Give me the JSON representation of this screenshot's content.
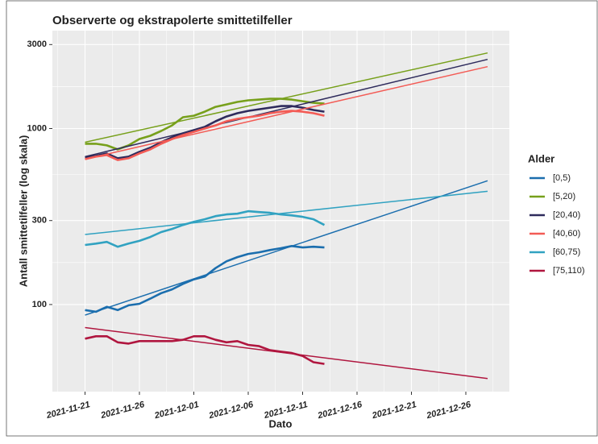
{
  "chart_data": {
    "type": "line",
    "title": "Observerte og ekstrapolerte smittetilfeller",
    "x_label": "Dato",
    "y_label": "Antall smittetilfeller (log skala)",
    "legend_title": "Alder",
    "y_log": true,
    "grid": true,
    "legend_position": "right",
    "xlim": [
      "2021-11-18",
      "2021-12-30"
    ],
    "xticks": [
      "2021-11-21",
      "2021-11-26",
      "2021-12-01",
      "2021-12-06",
      "2021-12-11",
      "2021-12-16",
      "2021-12-21",
      "2021-12-26"
    ],
    "ylim": [
      32,
      3600
    ],
    "yticks": [
      100,
      300,
      1000,
      3000
    ],
    "x": [
      "2021-11-21",
      "2021-11-22",
      "2021-11-23",
      "2021-11-24",
      "2021-11-25",
      "2021-11-26",
      "2021-11-27",
      "2021-11-28",
      "2021-11-29",
      "2021-11-30",
      "2021-12-01",
      "2021-12-02",
      "2021-12-03",
      "2021-12-04",
      "2021-12-05",
      "2021-12-06",
      "2021-12-07",
      "2021-12-08",
      "2021-12-09",
      "2021-12-10",
      "2021-12-11",
      "2021-12-12",
      "2021-12-13"
    ],
    "trend_x": [
      "2021-11-21",
      "2021-12-28"
    ],
    "series": [
      {
        "name": "[0,5)",
        "color": "#1b6eae",
        "values": [
          93,
          91,
          97,
          93,
          99,
          101,
          108,
          116,
          122,
          131,
          139,
          144,
          161,
          176,
          186,
          194,
          198,
          204,
          209,
          215,
          211,
          213,
          211
        ],
        "trend_values": [
          87,
          505
        ]
      },
      {
        "name": "[5,20)",
        "color": "#77a01b",
        "values": [
          819,
          819,
          802,
          761,
          802,
          872,
          910,
          969,
          1042,
          1159,
          1183,
          1247,
          1328,
          1371,
          1416,
          1446,
          1460,
          1475,
          1475,
          1460,
          1429,
          1400,
          1385
        ],
        "trend_values": [
          836,
          2687
        ]
      },
      {
        "name": "[20,40)",
        "color": "#2e2b5c",
        "values": [
          685,
          700,
          722,
          678,
          692,
          737,
          777,
          836,
          891,
          939,
          979,
          1021,
          1099,
          1170,
          1222,
          1260,
          1287,
          1314,
          1342,
          1342,
          1314,
          1274,
          1247
        ],
        "trend_values": [
          692,
          2470
        ]
      },
      {
        "name": "[40,60)",
        "color": "#f35b55",
        "values": [
          670,
          692,
          707,
          662,
          678,
          722,
          761,
          819,
          872,
          918,
          958,
          1000,
          1042,
          1099,
          1135,
          1159,
          1183,
          1222,
          1247,
          1260,
          1247,
          1222,
          1183
        ],
        "trend_values": [
          670,
          2247
        ]
      },
      {
        "name": "[60,75)",
        "color": "#31a2c1",
        "values": [
          218,
          222,
          227,
          213,
          222,
          230,
          242,
          258,
          269,
          283,
          295,
          305,
          318,
          325,
          328,
          339,
          335,
          332,
          325,
          321,
          315,
          305,
          283
        ],
        "trend_values": [
          250,
          440
        ]
      },
      {
        "name": "[75,110)",
        "color": "#b0163f",
        "values": [
          64,
          66,
          66,
          61,
          60,
          62,
          62,
          62,
          62,
          63,
          66,
          66,
          63,
          61,
          62,
          59,
          58,
          55,
          54,
          53,
          51,
          47,
          46
        ],
        "trend_values": [
          74,
          38
        ]
      }
    ]
  }
}
